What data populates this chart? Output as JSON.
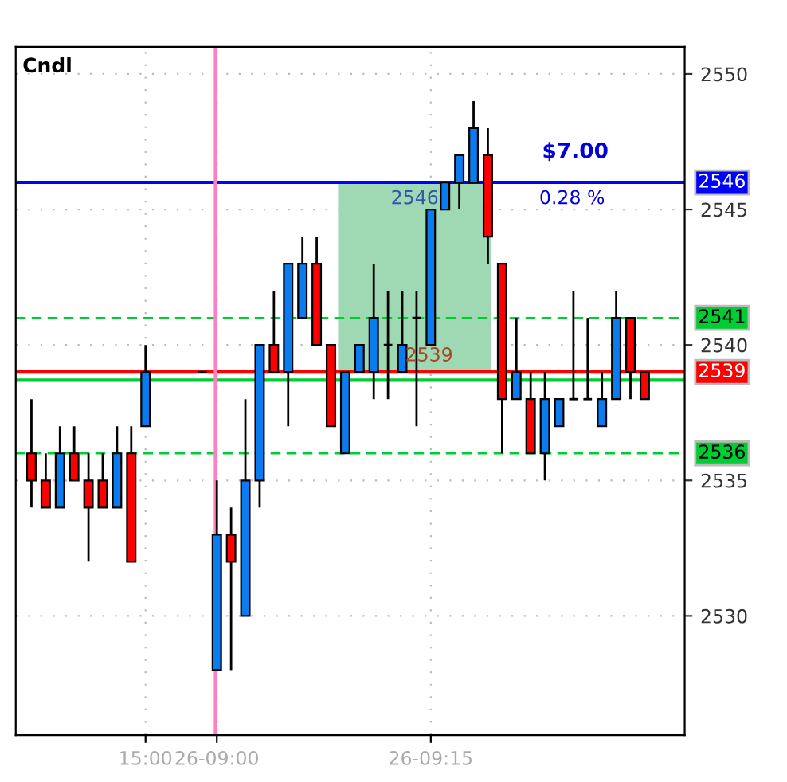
{
  "chart_data": {
    "type": "candlestick",
    "categories": [
      null,
      null,
      null,
      null,
      null,
      null,
      null,
      null,
      "15:00",
      null,
      null,
      null,
      null,
      "26-09:00",
      null,
      null,
      null,
      null,
      null,
      null,
      null,
      null,
      null,
      null,
      null,
      null,
      null,
      null,
      "26-09:15",
      null,
      null,
      null,
      null,
      null,
      null,
      null,
      null,
      null,
      null,
      null,
      null,
      null,
      null,
      null
    ],
    "ohlc": [
      [
        2536,
        2538,
        2534,
        2535
      ],
      [
        2535,
        2536,
        2534,
        2534
      ],
      [
        2534,
        2537,
        2534,
        2536
      ],
      [
        2536,
        2537,
        2535,
        2535
      ],
      [
        2535,
        2536,
        2532,
        2534
      ],
      [
        2535,
        2536,
        2534,
        2534
      ],
      [
        2534,
        2537,
        2534,
        2536
      ],
      [
        2536,
        2537,
        2532,
        2532
      ],
      [
        2537,
        2540,
        2537,
        2539
      ],
      null,
      null,
      null,
      [
        2539,
        2539,
        2539,
        2539
      ],
      [
        2528,
        2535,
        2528,
        2533
      ],
      [
        2533,
        2534,
        2528,
        2532
      ],
      [
        2530,
        2538,
        2530,
        2535
      ],
      [
        2535,
        2540,
        2534,
        2540
      ],
      [
        2540,
        2542,
        2539,
        2539
      ],
      [
        2539,
        2543,
        2537,
        2543
      ],
      [
        2541,
        2544,
        2541,
        2543
      ],
      [
        2543,
        2544,
        2540,
        2540
      ],
      [
        2540,
        2540,
        2537,
        2537
      ],
      [
        2536,
        2539,
        2536,
        2539
      ],
      [
        2539,
        2540,
        2539,
        2540
      ],
      [
        2539,
        2543,
        2538,
        2541
      ],
      [
        2540,
        2542,
        2538,
        2540
      ],
      [
        2539,
        2542,
        2539,
        2540
      ],
      [
        2541,
        2542,
        2537,
        2541
      ],
      [
        2540,
        2545,
        2540,
        2545
      ],
      [
        2545,
        2546,
        2545,
        2546
      ],
      [
        2546,
        2547,
        2545,
        2547
      ],
      [
        2546,
        2549,
        2546,
        2548
      ],
      [
        2547,
        2548,
        2543,
        2544
      ],
      [
        2543,
        2543,
        2536,
        2538
      ],
      [
        2538,
        2541,
        2538,
        2539
      ],
      [
        2538,
        2539,
        2536,
        2536
      ],
      [
        2536,
        2539,
        2535,
        2538
      ],
      [
        2537,
        2538,
        2537,
        2538
      ],
      [
        2538,
        2542,
        2538,
        2538
      ],
      [
        2538,
        2541,
        2538,
        2538
      ],
      [
        2537,
        2539,
        2537,
        2538
      ],
      [
        2538,
        2542,
        2538,
        2541
      ],
      [
        2541,
        2541,
        2538,
        2539
      ],
      [
        2539,
        2539,
        2538,
        2538
      ]
    ],
    "colors": [
      "#ff0000",
      "#ff0000",
      "#0a7cf0",
      "#ff0000",
      "#ff0000",
      "#ff0000",
      "#0a7cf0",
      "#ff0000",
      "#0a7cf0",
      null,
      null,
      null,
      "#000000",
      "#0a7cf0",
      "#ff0000",
      "#0a7cf0",
      "#0a7cf0",
      "#ff0000",
      "#0a7cf0",
      "#0a7cf0",
      "#ff0000",
      "#ff0000",
      "#0a7cf0",
      "#0a7cf0",
      "#0a7cf0",
      "#000000",
      "#0a7cf0",
      "#000000",
      "#0a7cf0",
      "#0a7cf0",
      "#0a7cf0",
      "#0a7cf0",
      "#ff0000",
      "#ff0000",
      "#0a7cf0",
      "#ff0000",
      "#0a7cf0",
      "#0a7cf0",
      "#000000",
      "#000000",
      "#0a7cf0",
      "#0a7cf0",
      "#ff0000",
      "#ff0000"
    ],
    "ylim": [
      2525.6,
      2551
    ],
    "yticks": [
      2530,
      2535,
      2540,
      2545,
      2550
    ],
    "grid": true,
    "ref_lines": [
      {
        "axis": "y",
        "value": 2546,
        "label": "2546",
        "color": "#0000ff",
        "line_style": "solid"
      },
      {
        "axis": "y",
        "value": 2541,
        "label": "2541",
        "color": "#00cc33",
        "line_style": "dashed"
      },
      {
        "axis": "y",
        "value": 2538.7,
        "label": null,
        "color": "#00cc33",
        "line_style": "solid"
      },
      {
        "axis": "y",
        "value": 2539,
        "label": "2539",
        "color": "#ff0000",
        "line_style": "solid"
      },
      {
        "axis": "y",
        "value": 2536,
        "label": "2536",
        "color": "#00cc33",
        "line_style": "dashed"
      },
      {
        "axis": "x",
        "value": "26-09:00",
        "label": null,
        "color": "#ff80c0",
        "line_style": "solid"
      }
    ],
    "bands": [
      {
        "axis": "y",
        "from": 2539,
        "to": 2546,
        "label": null,
        "color": "#9fd9b4"
      }
    ],
    "annotations": [
      "Cndl",
      "$7.00",
      "0.28 %",
      "2546",
      "2539"
    ]
  }
}
